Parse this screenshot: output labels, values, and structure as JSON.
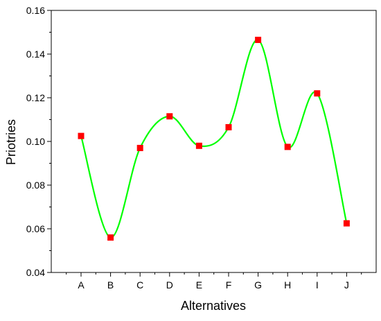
{
  "chart_data": {
    "type": "line",
    "xlabel": "Alternatives",
    "ylabel": "Priotries",
    "categories": [
      "A",
      "B",
      "C",
      "D",
      "E",
      "F",
      "G",
      "H",
      "I",
      "J"
    ],
    "values": [
      0.1025,
      0.056,
      0.097,
      0.1115,
      0.098,
      0.1065,
      0.1465,
      0.0975,
      0.122,
      0.0625
    ],
    "ylim": [
      0.04,
      0.16
    ],
    "yticks": [
      "0.04",
      "0.06",
      "0.08",
      "0.10",
      "0.12",
      "0.14",
      "0.16"
    ],
    "line_style": "smooth spline",
    "line_color": "#00ff00",
    "marker_color": "#ff0000",
    "marker_shape": "square",
    "grid": false,
    "legend": "none"
  }
}
